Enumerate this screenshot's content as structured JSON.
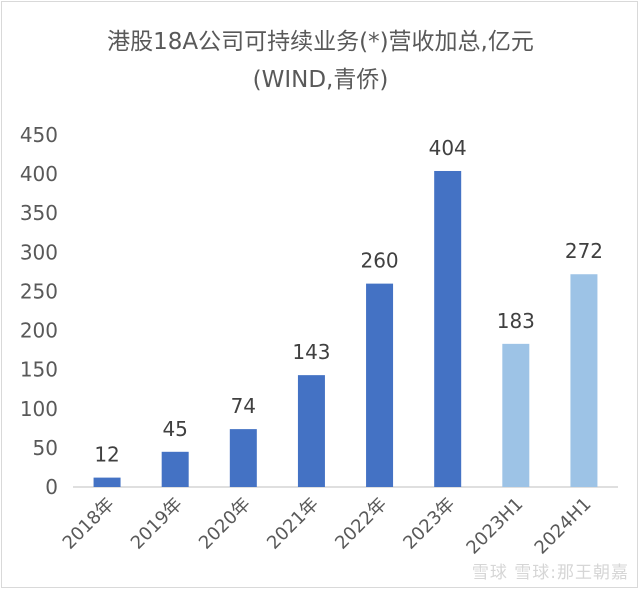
{
  "chart_data": {
    "type": "bar",
    "title": "港股18A公司可持续业务(*)营收加总,亿元",
    "subtitle": "(WIND,青侨)",
    "categories": [
      "2018年",
      "2019年",
      "2020年",
      "2021年",
      "2022年",
      "2023年",
      "2023H1",
      "2024H1"
    ],
    "values": [
      12,
      45,
      74,
      143,
      260,
      404,
      183,
      272
    ],
    "bar_colors": [
      "#4472c4",
      "#4472c4",
      "#4472c4",
      "#4472c4",
      "#4472c4",
      "#4472c4",
      "#9dc3e6",
      "#9dc3e6"
    ],
    "ylim": [
      0,
      450
    ],
    "yticks": [
      0,
      50,
      100,
      150,
      200,
      250,
      300,
      350,
      400,
      450
    ],
    "grid": false,
    "legend": "none"
  },
  "watermark": "雪球 雪球:那王朝嘉"
}
